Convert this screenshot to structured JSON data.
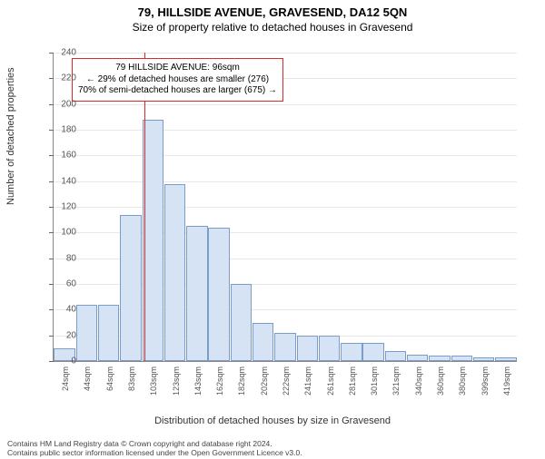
{
  "title": "79, HILLSIDE AVENUE, GRAVESEND, DA12 5QN",
  "subtitle": "Size of property relative to detached houses in Gravesend",
  "chart": {
    "type": "histogram",
    "ylabel": "Number of detached properties",
    "xlabel": "Distribution of detached houses by size in Gravesend",
    "ylim": [
      0,
      240
    ],
    "ytick_step": 20,
    "bar_fill": "#d6e3f5",
    "bar_stroke": "#7a9cc6",
    "grid_color": "#e8e8e8",
    "background_color": "#ffffff",
    "marker_color": "#d92b2b",
    "marker_x_value": 96,
    "x_start": 14,
    "x_bin_width": 20,
    "x_ticks": [
      "24sqm",
      "44sqm",
      "64sqm",
      "83sqm",
      "103sqm",
      "123sqm",
      "143sqm",
      "162sqm",
      "182sqm",
      "202sqm",
      "222sqm",
      "241sqm",
      "261sqm",
      "281sqm",
      "301sqm",
      "321sqm",
      "340sqm",
      "360sqm",
      "380sqm",
      "399sqm",
      "419sqm"
    ],
    "bars": [
      10,
      44,
      44,
      114,
      188,
      138,
      105,
      104,
      60,
      30,
      22,
      20,
      20,
      14,
      14,
      8,
      5,
      4,
      4,
      3,
      3
    ],
    "annotation": {
      "line1": "79 HILLSIDE AVENUE: 96sqm",
      "line2": "← 29% of detached houses are smaller (276)",
      "line3": "70% of semi-detached houses are larger (675) →"
    }
  },
  "footer": {
    "line1": "Contains HM Land Registry data © Crown copyright and database right 2024.",
    "line2": "Contains public sector information licensed under the Open Government Licence v3.0."
  }
}
